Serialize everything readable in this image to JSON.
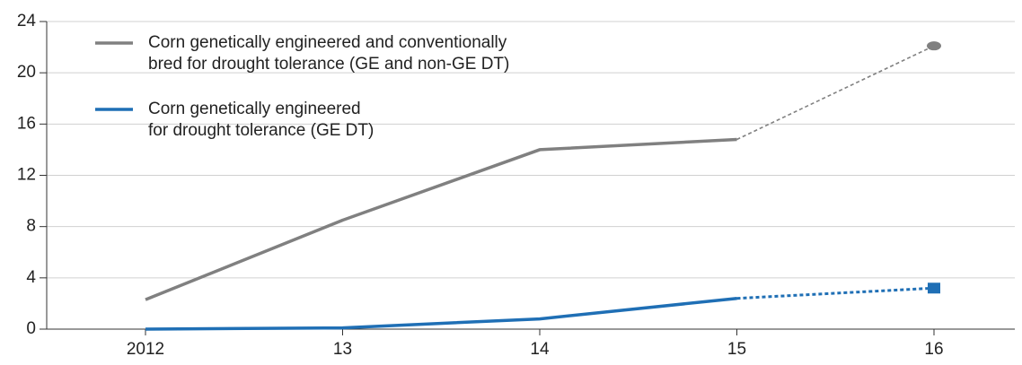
{
  "chart_data": {
    "type": "line",
    "categories": [
      "2012",
      "13",
      "14",
      "15",
      "16"
    ],
    "series": [
      {
        "name": "Corn genetically engineered and conventionally\nbred for drought tolerance (GE and non-GE DT)",
        "color": "#808080",
        "values": [
          2.3,
          8.5,
          14.0,
          14.8,
          22.1
        ],
        "dashed_from": 3,
        "end_marker": "circle"
      },
      {
        "name": "Corn genetically engineered\nfor drought tolerance (GE DT)",
        "color": "#1f6fb5",
        "values": [
          0,
          0.1,
          0.8,
          2.4,
          3.2
        ],
        "dashed_from": 3,
        "end_marker": "square"
      }
    ],
    "ylim": [
      0,
      24
    ],
    "yticks": [
      0,
      4,
      8,
      12,
      16,
      20,
      24
    ],
    "grid": true,
    "legend": "top-left"
  }
}
